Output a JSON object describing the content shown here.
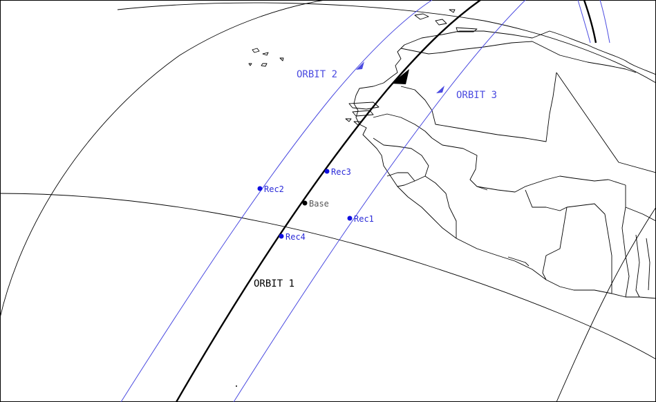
{
  "map": {
    "orbits": [
      {
        "id": "orbit-1",
        "label": "ORBIT 1",
        "color": "#000000"
      },
      {
        "id": "orbit-2",
        "label": "ORBIT 2",
        "color": "#4a4ae0"
      },
      {
        "id": "orbit-3",
        "label": "ORBIT 3",
        "color": "#4a4ae0"
      }
    ],
    "points": [
      {
        "id": "base",
        "label": "Base",
        "color": "#000000",
        "text_color": "#555555"
      },
      {
        "id": "rec1",
        "label": "Rec1",
        "color": "#1010e0",
        "text_color": "#2a2ad8"
      },
      {
        "id": "rec2",
        "label": "Rec2",
        "color": "#1010e0",
        "text_color": "#2a2ad8"
      },
      {
        "id": "rec3",
        "label": "Rec3",
        "color": "#1010e0",
        "text_color": "#2a2ad8"
      },
      {
        "id": "rec4",
        "label": "Rec4",
        "color": "#1010e0",
        "text_color": "#2a2ad8"
      }
    ],
    "colors": {
      "coastline": "#000000",
      "graticule": "#000000",
      "background": "#ffffff"
    }
  }
}
